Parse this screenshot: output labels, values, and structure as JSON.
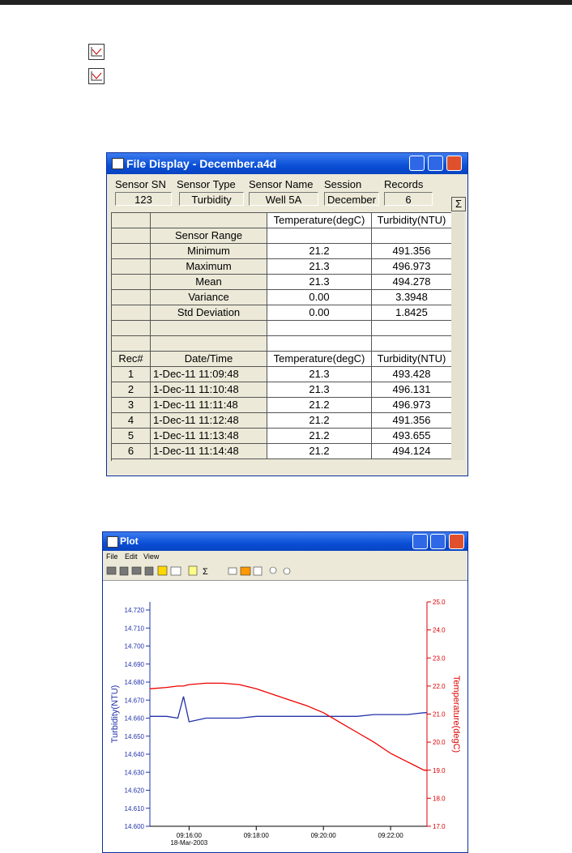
{
  "file_display": {
    "title": "File Display - December.a4d",
    "fields": [
      {
        "label": "Sensor SN",
        "value": "123"
      },
      {
        "label": "Sensor Type",
        "value": "Turbidity"
      },
      {
        "label": "Sensor Name",
        "value": "Well 5A"
      },
      {
        "label": "Session",
        "value": "December"
      },
      {
        "label": "Records",
        "value": "6"
      }
    ],
    "sigma_button": "Σ",
    "stats_header": [
      "Temperature(degC)",
      "Turbidity(NTU)"
    ],
    "stats": [
      {
        "label": "Sensor Range"
      },
      {
        "label": "Minimum",
        "values": [
          "21.2",
          "491.356"
        ]
      },
      {
        "label": "Maximum",
        "values": [
          "21.3",
          "496.973"
        ]
      },
      {
        "label": "Mean",
        "values": [
          "21.3",
          "494.278"
        ]
      },
      {
        "label": "Variance",
        "values": [
          "0.00",
          "3.3948"
        ]
      },
      {
        "label": "Std Deviation",
        "values": [
          "0.00",
          "1.8425"
        ]
      }
    ],
    "records_header": [
      "Rec#",
      "Date/Time",
      "Temperature(degC)",
      "Turbidity(NTU)"
    ],
    "records": [
      [
        "1",
        "1-Dec-11 11:09:48",
        "21.3",
        "493.428"
      ],
      [
        "2",
        "1-Dec-11 11:10:48",
        "21.3",
        "496.131"
      ],
      [
        "3",
        "1-Dec-11 11:11:48",
        "21.2",
        "496.973"
      ],
      [
        "4",
        "1-Dec-11 11:12:48",
        "21.2",
        "491.356"
      ],
      [
        "5",
        "1-Dec-11 11:13:48",
        "21.2",
        "493.655"
      ],
      [
        "6",
        "1-Dec-11 11:14:48",
        "21.2",
        "494.124"
      ]
    ]
  },
  "plot_window": {
    "title": "Plot",
    "menu": [
      "File",
      "Edit",
      "View"
    ]
  },
  "chart_data": {
    "type": "line",
    "y_label": "Turbidity(NTU)",
    "y2_label": "Temperature(degC)",
    "x_date_label": "18-Mar-2003",
    "x": [
      "09:14:50",
      "09:15:20",
      "09:15:40",
      "09:15:50",
      "09:16:00",
      "09:16:30",
      "09:17:00",
      "09:17:30",
      "09:18:00",
      "09:18:30",
      "09:19:00",
      "09:19:30",
      "09:20:00",
      "09:20:30",
      "09:21:00",
      "09:21:30",
      "09:22:00",
      "09:22:30",
      "09:23:00",
      "09:23:05"
    ],
    "xlim": [
      "09:14:50",
      "09:23:05"
    ],
    "xticks": [
      "09:16:00",
      "09:18:00",
      "09:20:00",
      "09:22:00"
    ],
    "ylim": [
      14.6,
      14.7245
    ],
    "yticks": [
      {
        "value": 14.6,
        "label": "14.600"
      },
      {
        "value": 14.61,
        "label": "14.610"
      },
      {
        "value": 14.62,
        "label": "14.620"
      },
      {
        "value": 14.63,
        "label": "14.630"
      },
      {
        "value": 14.64,
        "label": "14.640"
      },
      {
        "value": 14.65,
        "label": "14.650"
      },
      {
        "value": 14.66,
        "label": "14.660"
      },
      {
        "value": 14.67,
        "label": "14.670"
      },
      {
        "value": 14.68,
        "label": "14.680"
      },
      {
        "value": 14.69,
        "label": "14.690"
      },
      {
        "value": 14.7,
        "label": "14.700"
      },
      {
        "value": 14.71,
        "label": "14.710"
      },
      {
        "value": 14.72,
        "label": "14.720"
      }
    ],
    "y2lim": [
      17,
      25
    ],
    "y2ticks": [
      {
        "value": 17,
        "label": "17.0"
      },
      {
        "value": 18,
        "label": "18.0"
      },
      {
        "value": 19,
        "label": "19.0"
      },
      {
        "value": 20,
        "label": "20.0"
      },
      {
        "value": 21,
        "label": "21.0"
      },
      {
        "value": 22,
        "label": "22.0"
      },
      {
        "value": 23,
        "label": "23.0"
      },
      {
        "value": 24,
        "label": "24.0"
      },
      {
        "value": 25,
        "label": "25.0"
      }
    ],
    "y_color": "#2233aa",
    "y2_color": "#dd0000",
    "series": [
      {
        "name": "Turbidity",
        "color": "#2233aa",
        "values": [
          14.661,
          14.661,
          14.66,
          14.672,
          14.658,
          14.66,
          14.66,
          14.66,
          14.661,
          14.661,
          14.661,
          14.661,
          14.661,
          14.661,
          14.661,
          14.662,
          14.662,
          14.662,
          14.663,
          14.663
        ]
      },
      {
        "name": "Temperature",
        "color": "#ee0000",
        "axis": "y2",
        "values": [
          21.9,
          21.95,
          22.0,
          22.0,
          22.05,
          22.1,
          22.1,
          22.05,
          21.9,
          21.7,
          21.5,
          21.3,
          21.05,
          20.7,
          20.35,
          20.0,
          19.6,
          19.3,
          19.0,
          19.0
        ]
      }
    ]
  }
}
